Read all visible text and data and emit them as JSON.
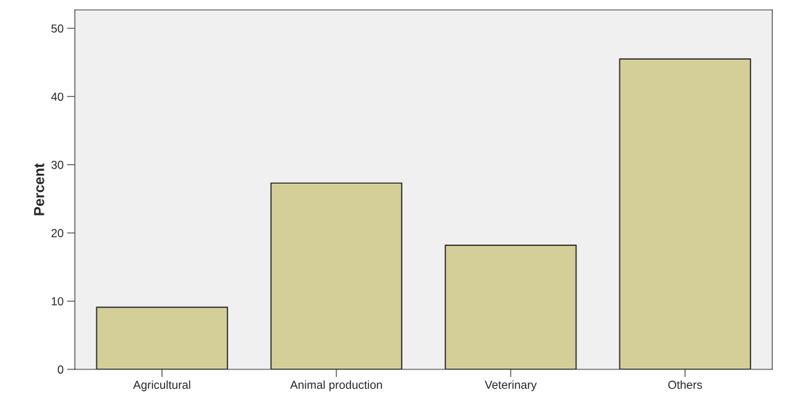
{
  "chart_data": {
    "type": "bar",
    "ylabel": "Percent",
    "categories": [
      "Agricultural",
      "Animal production",
      "Veterinary",
      "Others"
    ],
    "values": [
      9.1,
      27.3,
      18.2,
      45.5
    ],
    "color": "#d4cf98",
    "ylim": [
      0,
      52.7
    ],
    "yticks": [
      0,
      10,
      20,
      30,
      40,
      50
    ],
    "grid": false
  }
}
